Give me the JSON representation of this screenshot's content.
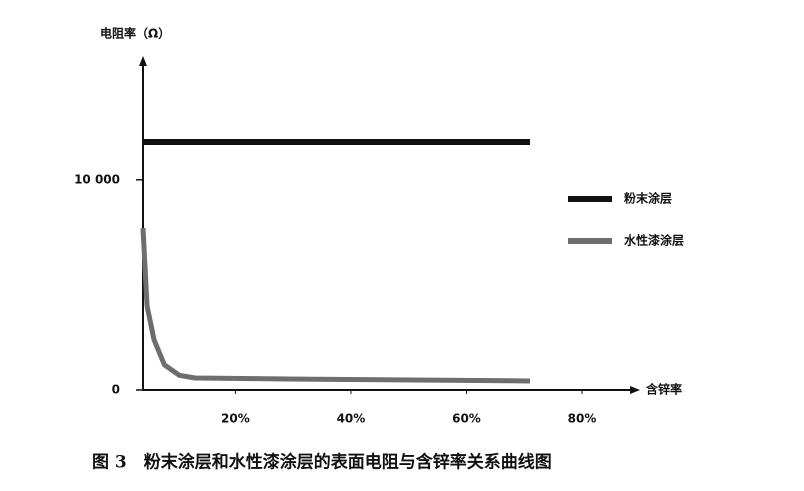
{
  "chart_data": {
    "type": "line",
    "caption": "图 3　粉末涂层和水性漆涂层的表面电阻与含锌率关系曲线图",
    "y_label": "电阻率（Ω）",
    "x_label": "含锌率",
    "xlim": [
      4,
      89
    ],
    "ylim": [
      0,
      15700
    ],
    "xticks": [
      {
        "value": 20,
        "label": "20%"
      },
      {
        "value": 40,
        "label": "40%"
      },
      {
        "value": 60,
        "label": "60%"
      },
      {
        "value": 80,
        "label": "80%"
      }
    ],
    "yticks": [
      0,
      {
        "value": 10000,
        "label": "10 000"
      }
    ],
    "series": [
      {
        "name": "粉末涂层",
        "color": "#111111",
        "x": [
          4,
          71
        ],
        "values": [
          11800,
          11800
        ]
      },
      {
        "name": "水性漆涂层",
        "color": "#6e6e6e",
        "x": [
          4,
          4.7,
          5.9,
          7.7,
          10.3,
          13,
          31,
          71
        ],
        "values": [
          7700,
          4000,
          2400,
          1200,
          700,
          570,
          520,
          430
        ]
      }
    ]
  }
}
